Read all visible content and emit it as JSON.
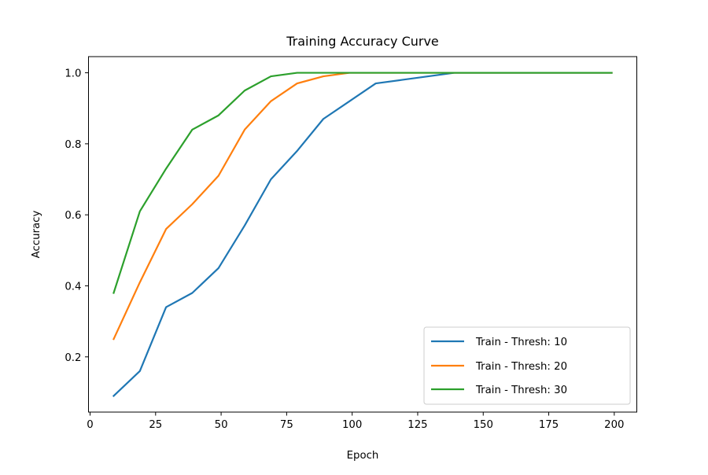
{
  "chart_data": {
    "type": "line",
    "title": "Training Accuracy Curve",
    "xlabel": "Epoch",
    "ylabel": "Accuracy",
    "xlim": [
      -0.6,
      208.6
    ],
    "ylim": [
      0.0445,
      1.0455
    ],
    "xticks": [
      0,
      25,
      50,
      75,
      100,
      125,
      150,
      175,
      200
    ],
    "yticks": [
      0.2,
      0.4,
      0.6,
      0.8,
      1.0
    ],
    "xtick_labels": [
      "0",
      "25",
      "50",
      "75",
      "100",
      "125",
      "150",
      "175",
      "200"
    ],
    "ytick_labels": [
      "0.2",
      "0.4",
      "0.6",
      "0.8",
      "1.0"
    ],
    "grid": false,
    "legend_position": "lower right",
    "series": [
      {
        "name": "Train - Thresh: 10",
        "color": "#1f77b4",
        "x": [
          9,
          19,
          29,
          39,
          49,
          59,
          69,
          79,
          89,
          99,
          109,
          119,
          129,
          139,
          149,
          159,
          169,
          179,
          189,
          199
        ],
        "y": [
          0.09,
          0.16,
          0.34,
          0.38,
          0.45,
          0.57,
          0.7,
          0.78,
          0.87,
          0.92,
          0.97,
          0.98,
          0.99,
          1.0,
          1.0,
          1.0,
          1.0,
          1.0,
          1.0,
          1.0
        ]
      },
      {
        "name": "Train - Thresh: 20",
        "color": "#ff7f0e",
        "x": [
          9,
          19,
          29,
          39,
          49,
          59,
          69,
          79,
          89,
          99,
          109,
          119,
          129,
          139,
          149,
          159,
          169,
          179,
          189,
          199
        ],
        "y": [
          0.25,
          0.41,
          0.56,
          0.63,
          0.71,
          0.84,
          0.92,
          0.97,
          0.99,
          1.0,
          1.0,
          1.0,
          1.0,
          1.0,
          1.0,
          1.0,
          1.0,
          1.0,
          1.0,
          1.0
        ]
      },
      {
        "name": "Train - Thresh: 30",
        "color": "#2ca02c",
        "x": [
          9,
          19,
          29,
          39,
          49,
          59,
          69,
          79,
          89,
          99,
          109,
          119,
          129,
          139,
          149,
          159,
          169,
          179,
          189,
          199
        ],
        "y": [
          0.38,
          0.61,
          0.73,
          0.84,
          0.88,
          0.95,
          0.99,
          1.0,
          1.0,
          1.0,
          1.0,
          1.0,
          1.0,
          1.0,
          1.0,
          1.0,
          1.0,
          1.0,
          1.0,
          1.0
        ]
      }
    ]
  }
}
